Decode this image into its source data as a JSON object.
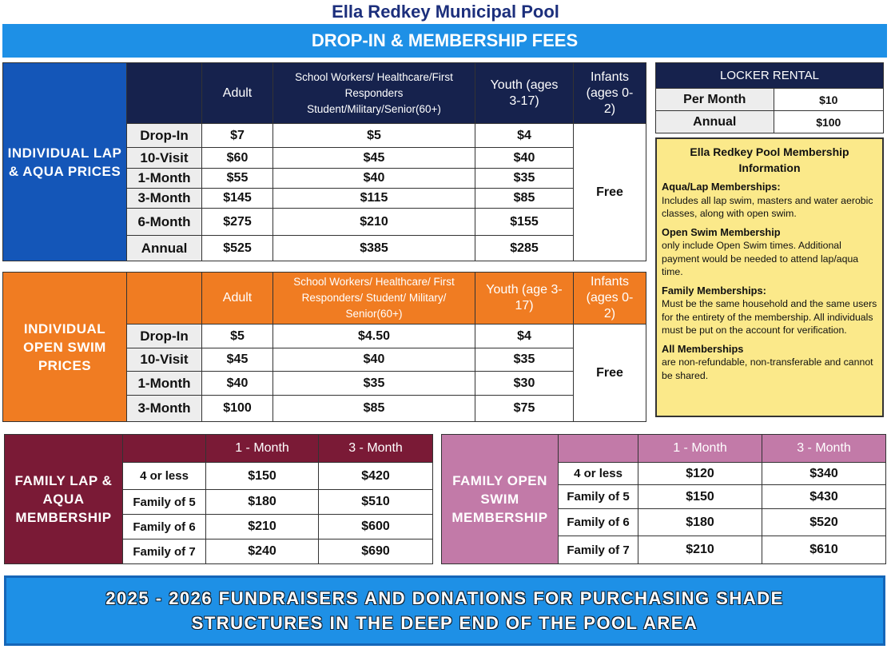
{
  "title": "Ella Redkey Municipal Pool",
  "banner_top": "DROP-IN & MEMBERSHIP FEES",
  "colors": {
    "navy": "#16224d",
    "blue": "#1456b8",
    "orange": "#f07c22",
    "maroon": "#7a1a36",
    "pink": "#c27aa8",
    "yellow": "#fbe98a",
    "bar": "#1e90e6"
  },
  "lap": {
    "label": "INDIVIDUAL LAP & AQUA PRICES",
    "headers": [
      "Adult",
      "School Workers/ Healthcare/First Responders Student/Military/Senior(60+)",
      "Youth (ages 3-17)",
      "Infants (ages 0-2)"
    ],
    "rows": [
      [
        "Drop-In",
        "$7",
        "$5",
        "$4"
      ],
      [
        "10-Visit",
        "$60",
        "$45",
        "$40"
      ],
      [
        "1-Month",
        "$55",
        "$40",
        "$35"
      ],
      [
        "3-Month",
        "$145",
        "$115",
        "$85"
      ],
      [
        "6-Month",
        "$275",
        "$210",
        "$155"
      ],
      [
        "Annual",
        "$525",
        "$385",
        "$285"
      ]
    ],
    "infants": "Free"
  },
  "open": {
    "label": "INDIVIDUAL OPEN SWIM PRICES",
    "headers": [
      "Adult",
      "School Workers/ Healthcare/ First Responders/ Student/ Military/ Senior(60+)",
      "Youth (age 3-17)",
      "Infants (ages 0-2)"
    ],
    "rows": [
      [
        "Drop-In",
        "$5",
        "$4.50",
        "$4"
      ],
      [
        "10-Visit",
        "$45",
        "$40",
        "$35"
      ],
      [
        "1-Month",
        "$40",
        "$35",
        "$30"
      ],
      [
        "3-Month",
        "$100",
        "$85",
        "$75"
      ]
    ],
    "infants": "Free"
  },
  "locker": {
    "header": "LOCKER RENTAL",
    "rows": [
      [
        "Per Month",
        "$10"
      ],
      [
        "Annual",
        "$100"
      ]
    ]
  },
  "info": {
    "title": "Ella Redkey Pool Membership Information",
    "sections": [
      {
        "heading": "Aqua/Lap Memberships:",
        "text": "Includes all lap swim, masters and water aerobic classes, along with open swim."
      },
      {
        "heading": "Open Swim Membership",
        "text": "only include Open Swim times. Additional payment would be needed to attend lap/aqua time."
      },
      {
        "heading": "Family Memberships:",
        "text": "Must be the same household and the same users for the entirety of the membership. All individuals must be put on the account for verification."
      },
      {
        "heading": "All Memberships",
        "text": "are non-refundable, non-transferable and cannot be shared."
      }
    ]
  },
  "family_lap": {
    "label": "FAMILY LAP & AQUA MEMBERSHIP",
    "headers": [
      "1 - Month",
      "3 - Month"
    ],
    "rows": [
      [
        "4 or less",
        "$150",
        "$420"
      ],
      [
        "Family of 5",
        "$180",
        "$510"
      ],
      [
        "Family of 6",
        "$210",
        "$600"
      ],
      [
        "Family of 7",
        "$240",
        "$690"
      ]
    ]
  },
  "family_open": {
    "label": "FAMILY OPEN SWIM MEMBERSHIP",
    "headers": [
      "1 - Month",
      "3 - Month"
    ],
    "rows": [
      [
        "4 or less",
        "$120",
        "$340"
      ],
      [
        "Family of 5",
        "$150",
        "$430"
      ],
      [
        "Family of 6",
        "$180",
        "$520"
      ],
      [
        "Family of 7",
        "$210",
        "$610"
      ]
    ]
  },
  "footer": {
    "line1": "2025 - 2026 FUNDRAISERS AND DONATIONS FOR PURCHASING SHADE",
    "line2": "STRUCTURES IN THE DEEP END OF THE POOL AREA"
  }
}
